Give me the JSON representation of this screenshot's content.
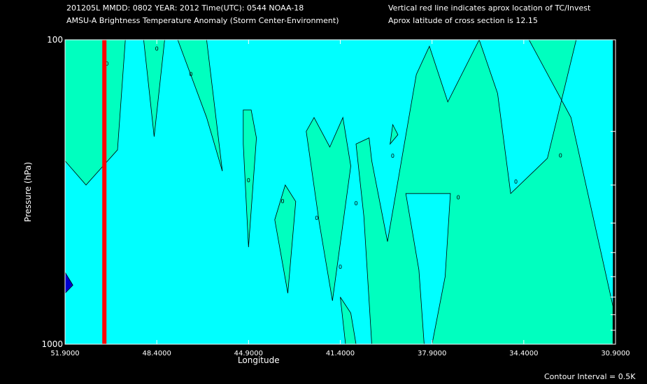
{
  "header": {
    "line1_left": "201205L  MMDD: 0802 YEAR: 2012 Time(UTC): 0544 NOAA-18",
    "line2_left": "AMSU-A Brightness Temperature Anomaly (Storm Center-Environment)",
    "line1_right": "Vertical red line indicates aprox location of TC/Invest",
    "line2_right": "Aprox latitude of cross section is 12.15"
  },
  "footer": {
    "contour_interval": "Contour Interval = 0.5K"
  },
  "chart_data": {
    "type": "heatmap",
    "xlabel": "Longitude",
    "ylabel": "Pressure (hPa)",
    "xlim": [
      51.9,
      30.9
    ],
    "ylim": [
      1000,
      100
    ],
    "y_scale": "log",
    "x_tick_labels": [
      "51.9000",
      "48.4000",
      "44.9000",
      "41.4000",
      "37.9000",
      "34.4000",
      "30.9000"
    ],
    "y_tick_labels": [
      "100",
      "1000"
    ],
    "contour_label": "0",
    "tc_longitude": 50.4,
    "colors": {
      "background": "#00ffff",
      "positive": "#00ffbf",
      "negative": "#0000cd",
      "tc_line": "#ff0000",
      "no_data": "#000000"
    },
    "anomaly_regions": [
      {
        "sign": "positive",
        "polygon": [
          [
            51.9,
            100
          ],
          [
            49.6,
            100
          ],
          [
            49.9,
            230
          ],
          [
            51.1,
            300
          ],
          [
            51.9,
            250
          ]
        ]
      },
      {
        "sign": "positive",
        "polygon": [
          [
            48.9,
            100
          ],
          [
            48.1,
            100
          ],
          [
            48.5,
            208
          ]
        ]
      },
      {
        "sign": "positive",
        "polygon": [
          [
            47.6,
            100
          ],
          [
            46.5,
            100
          ],
          [
            45.9,
            270
          ],
          [
            46.5,
            180
          ]
        ]
      },
      {
        "sign": "positive",
        "polygon": [
          [
            44.8,
            170
          ],
          [
            44.6,
            210
          ],
          [
            44.9,
            480
          ],
          [
            45.1,
            220
          ],
          [
            45.1,
            170
          ]
        ]
      },
      {
        "sign": "positive",
        "polygon": [
          [
            43.5,
            300
          ],
          [
            43.1,
            340
          ],
          [
            43.4,
            680
          ],
          [
            43.9,
            390
          ]
        ]
      },
      {
        "sign": "positive",
        "polygon": [
          [
            42.7,
            200
          ],
          [
            42.4,
            180
          ],
          [
            41.8,
            225
          ],
          [
            41.3,
            180
          ],
          [
            41.0,
            260
          ],
          [
            41.7,
            720
          ],
          [
            42.2,
            400
          ]
        ]
      },
      {
        "sign": "positive",
        "polygon": [
          [
            41.4,
            700
          ],
          [
            41.2,
            1000
          ],
          [
            40.8,
            1000
          ],
          [
            41.0,
            790
          ]
        ]
      },
      {
        "sign": "positive",
        "polygon": [
          [
            40.8,
            220
          ],
          [
            40.5,
            380
          ],
          [
            40.2,
            1000
          ],
          [
            38.2,
            1000
          ],
          [
            38.4,
            570
          ],
          [
            38.9,
            320
          ],
          [
            37.2,
            320
          ],
          [
            37.4,
            600
          ],
          [
            37.9,
            1000
          ],
          [
            31.0,
            1000
          ],
          [
            31.0,
            750
          ],
          [
            32.6,
            180
          ],
          [
            34.2,
            100
          ],
          [
            32.4,
            100
          ],
          [
            33.5,
            245
          ],
          [
            34.9,
            320
          ],
          [
            35.4,
            150
          ],
          [
            36.1,
            100
          ],
          [
            37.3,
            160
          ],
          [
            38.0,
            105
          ],
          [
            38.5,
            130
          ],
          [
            39.6,
            460
          ],
          [
            40.2,
            250
          ],
          [
            40.3,
            210
          ]
        ]
      },
      {
        "sign": "positive",
        "polygon": [
          [
            39.4,
            190
          ],
          [
            39.5,
            220
          ],
          [
            39.2,
            205
          ]
        ]
      },
      {
        "sign": "negative",
        "polygon": [
          [
            51.9,
            580
          ],
          [
            51.6,
            640
          ],
          [
            51.9,
            680
          ]
        ]
      }
    ],
    "contour_label_points": [
      [
        50.3,
        120
      ],
      [
        48.4,
        107
      ],
      [
        47.1,
        130
      ],
      [
        44.9,
        290
      ],
      [
        43.6,
        340
      ],
      [
        42.3,
        385
      ],
      [
        41.4,
        558
      ],
      [
        40.8,
        345
      ],
      [
        39.4,
        241
      ],
      [
        36.9,
        330
      ],
      [
        34.7,
        293
      ],
      [
        33.0,
        240
      ]
    ]
  }
}
